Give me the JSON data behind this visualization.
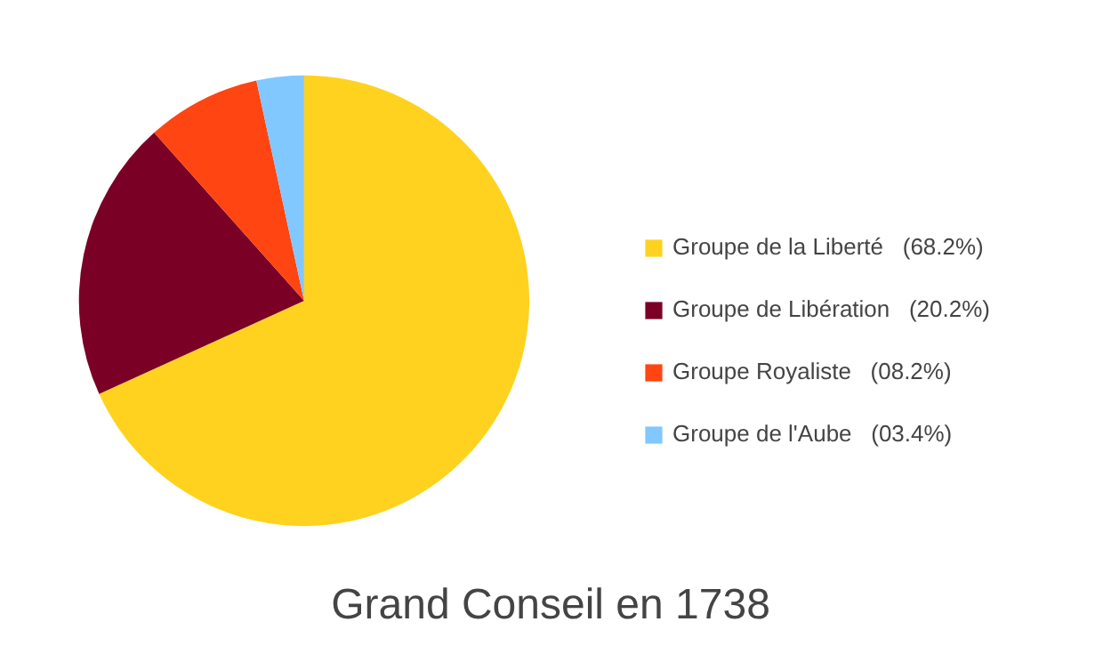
{
  "chart_data": {
    "type": "pie",
    "title": "Grand Conseil en 1738",
    "categories": [
      "Groupe de la Liberté",
      "Groupe de Libération",
      "Groupe Royaliste",
      "Groupe de l'Aube"
    ],
    "values": [
      68.2,
      20.2,
      8.2,
      3.4
    ],
    "value_labels": [
      "(68.2%)",
      "(20.2%)",
      "(08.2%)",
      "(03.4%)"
    ],
    "colors": [
      "#ffd21f",
      "#7a0026",
      "#ff4512",
      "#80c8ff"
    ],
    "legend": "right"
  }
}
